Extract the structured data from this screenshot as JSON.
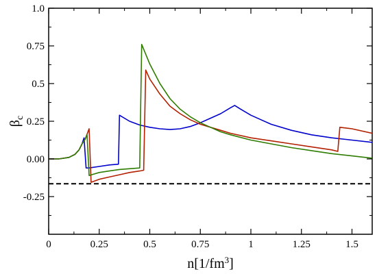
{
  "chart_data": {
    "type": "line",
    "title": "",
    "xlabel": "n[1/fm",
    "xlabel_sup": "3",
    "xlabel_tail": "]",
    "ylabel": "β",
    "ylabel_sub": "c",
    "xlim": [
      0,
      1.6
    ],
    "ylim": [
      -0.5,
      1.0
    ],
    "x_ticks": [
      0,
      0.25,
      0.5,
      0.75,
      1.0,
      1.25,
      1.5
    ],
    "x_tick_labels": [
      "0",
      "0.25",
      "0.5",
      "0.75",
      "1",
      "1.25",
      "1.5"
    ],
    "y_ticks": [
      -0.25,
      0,
      0.25,
      0.5,
      0.75,
      1.0
    ],
    "y_tick_labels": [
      "-0.25",
      "0.00",
      "0.25",
      "0.5",
      "0.75",
      "1.0"
    ],
    "grid": false,
    "legend": "none",
    "series": [
      {
        "color": "#0000cc",
        "style": "solid",
        "points": [
          [
            0.0,
            0.0
          ],
          [
            0.05,
            0.0
          ],
          [
            0.1,
            0.01
          ],
          [
            0.13,
            0.03
          ],
          [
            0.15,
            0.06
          ],
          [
            0.165,
            0.1
          ],
          [
            0.175,
            0.14
          ],
          [
            0.185,
            -0.06
          ],
          [
            0.2,
            -0.06
          ],
          [
            0.25,
            -0.05
          ],
          [
            0.3,
            -0.04
          ],
          [
            0.345,
            -0.035
          ],
          [
            0.35,
            0.29
          ],
          [
            0.4,
            0.25
          ],
          [
            0.45,
            0.225
          ],
          [
            0.5,
            0.21
          ],
          [
            0.55,
            0.2
          ],
          [
            0.6,
            0.195
          ],
          [
            0.65,
            0.2
          ],
          [
            0.7,
            0.215
          ],
          [
            0.75,
            0.24
          ],
          [
            0.8,
            0.27
          ],
          [
            0.85,
            0.3
          ],
          [
            0.9,
            0.34
          ],
          [
            0.92,
            0.355
          ],
          [
            0.95,
            0.33
          ],
          [
            1.0,
            0.29
          ],
          [
            1.05,
            0.26
          ],
          [
            1.1,
            0.23
          ],
          [
            1.2,
            0.19
          ],
          [
            1.3,
            0.16
          ],
          [
            1.4,
            0.14
          ],
          [
            1.5,
            0.125
          ],
          [
            1.6,
            0.11
          ]
        ]
      },
      {
        "color": "#b22000",
        "style": "solid",
        "points": [
          [
            0.0,
            0.0
          ],
          [
            0.05,
            0.0
          ],
          [
            0.1,
            0.01
          ],
          [
            0.13,
            0.03
          ],
          [
            0.15,
            0.06
          ],
          [
            0.165,
            0.1
          ],
          [
            0.18,
            0.13
          ],
          [
            0.2,
            0.2
          ],
          [
            0.21,
            -0.155
          ],
          [
            0.25,
            -0.135
          ],
          [
            0.3,
            -0.12
          ],
          [
            0.35,
            -0.105
          ],
          [
            0.4,
            -0.09
          ],
          [
            0.45,
            -0.08
          ],
          [
            0.47,
            -0.075
          ],
          [
            0.48,
            0.59
          ],
          [
            0.5,
            0.53
          ],
          [
            0.55,
            0.43
          ],
          [
            0.6,
            0.35
          ],
          [
            0.65,
            0.3
          ],
          [
            0.7,
            0.26
          ],
          [
            0.75,
            0.23
          ],
          [
            0.8,
            0.21
          ],
          [
            0.85,
            0.19
          ],
          [
            0.9,
            0.17
          ],
          [
            1.0,
            0.14
          ],
          [
            1.1,
            0.12
          ],
          [
            1.2,
            0.1
          ],
          [
            1.3,
            0.08
          ],
          [
            1.4,
            0.06
          ],
          [
            1.43,
            0.05
          ],
          [
            1.44,
            0.21
          ],
          [
            1.5,
            0.2
          ],
          [
            1.6,
            0.17
          ]
        ]
      },
      {
        "color": "#2e7d00",
        "style": "solid",
        "points": [
          [
            0.0,
            0.0
          ],
          [
            0.05,
            0.0
          ],
          [
            0.1,
            0.01
          ],
          [
            0.13,
            0.03
          ],
          [
            0.15,
            0.06
          ],
          [
            0.165,
            0.1
          ],
          [
            0.18,
            0.13
          ],
          [
            0.19,
            0.16
          ],
          [
            0.2,
            -0.11
          ],
          [
            0.25,
            -0.09
          ],
          [
            0.3,
            -0.08
          ],
          [
            0.35,
            -0.07
          ],
          [
            0.4,
            -0.065
          ],
          [
            0.45,
            -0.06
          ],
          [
            0.46,
            0.76
          ],
          [
            0.5,
            0.63
          ],
          [
            0.55,
            0.5
          ],
          [
            0.6,
            0.4
          ],
          [
            0.65,
            0.33
          ],
          [
            0.7,
            0.28
          ],
          [
            0.75,
            0.24
          ],
          [
            0.8,
            0.21
          ],
          [
            0.85,
            0.18
          ],
          [
            0.9,
            0.16
          ],
          [
            1.0,
            0.125
          ],
          [
            1.1,
            0.1
          ],
          [
            1.2,
            0.075
          ],
          [
            1.3,
            0.055
          ],
          [
            1.4,
            0.035
          ],
          [
            1.5,
            0.02
          ],
          [
            1.6,
            0.005
          ]
        ]
      },
      {
        "color": "#000000",
        "style": "dashed",
        "points": [
          [
            0.0,
            -0.165
          ],
          [
            1.6,
            -0.165
          ]
        ]
      }
    ]
  }
}
